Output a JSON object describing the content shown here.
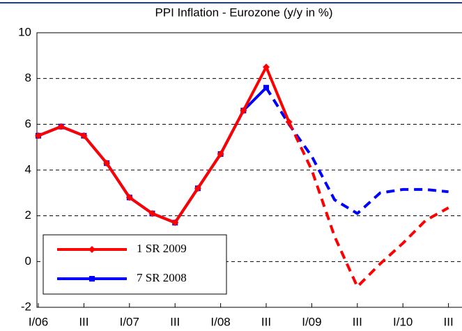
{
  "chart_data": {
    "type": "line",
    "title": "PPI Inflation - Eurozone (y/y in %)",
    "categories": [
      "I/06",
      null,
      "III",
      null,
      "I/07",
      null,
      "III",
      null,
      "I/08",
      null,
      "III",
      null,
      "I/09",
      null,
      "III",
      null,
      "I/10",
      null,
      "III"
    ],
    "series": [
      {
        "name": "1 SR 2009",
        "color": "#ff0000",
        "marker": "diamond",
        "values": [
          5.5,
          5.9,
          5.5,
          4.3,
          2.8,
          2.1,
          1.7,
          3.2,
          4.7,
          6.6,
          8.5,
          6.1,
          null,
          null,
          null,
          null,
          null,
          null,
          null
        ],
        "forecast": [
          null,
          null,
          null,
          null,
          null,
          null,
          null,
          null,
          null,
          null,
          null,
          6.1,
          4.0,
          1.1,
          -1.1,
          -0.1,
          0.8,
          1.8,
          2.35
        ]
      },
      {
        "name": "7 SR 2008",
        "color": "#0000ff",
        "marker": "square",
        "values": [
          5.5,
          5.9,
          5.5,
          4.3,
          2.8,
          2.1,
          1.7,
          3.2,
          4.7,
          6.6,
          7.6,
          null,
          null,
          null,
          null,
          null,
          null,
          null,
          null
        ],
        "forecast": [
          null,
          null,
          null,
          null,
          null,
          null,
          null,
          null,
          null,
          null,
          7.6,
          6.0,
          4.6,
          2.7,
          2.1,
          3.0,
          3.15,
          3.15,
          3.05
        ]
      }
    ],
    "ylim": [
      -2,
      10
    ],
    "yticks": [
      -2,
      0,
      2,
      4,
      6,
      8,
      10
    ],
    "grid": true,
    "legend": "bottom-left"
  }
}
